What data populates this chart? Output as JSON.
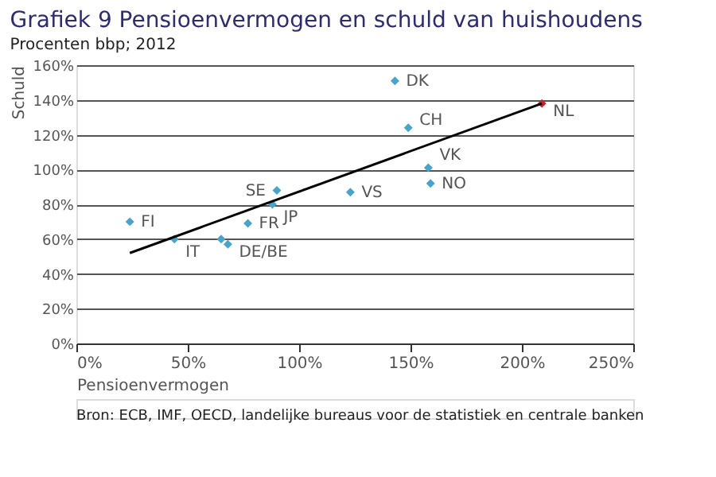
{
  "chart_data": {
    "type": "scatter",
    "title": "Grafiek 9 Pensioenvermogen en schuld van huishoudens",
    "subtitle": "Procenten bbp; 2012",
    "xlabel": "Pensioenvermogen",
    "ylabel": "Schuld",
    "xlim": [
      0,
      250
    ],
    "xticks": [
      {
        "value": 0,
        "label": "0%"
      },
      {
        "value": 50,
        "label": "50%"
      },
      {
        "value": 100,
        "label": "100%"
      },
      {
        "value": 150,
        "label": "150%"
      },
      {
        "value": 200,
        "label": "200%"
      },
      {
        "value": 250,
        "label": "250%"
      }
    ],
    "ylim": [
      0,
      160
    ],
    "yticks": [
      {
        "value": 0,
        "label": "0%"
      },
      {
        "value": 20,
        "label": "20%"
      },
      {
        "value": 40,
        "label": "40%"
      },
      {
        "value": 60,
        "label": "60%"
      },
      {
        "value": 80,
        "label": "80%"
      },
      {
        "value": 100,
        "label": "100%"
      },
      {
        "value": 120,
        "label": "120%"
      },
      {
        "value": 140,
        "label": "140%"
      },
      {
        "value": 160,
        "label": "160%"
      }
    ],
    "grid": "y",
    "marker": "diamond",
    "series": [
      {
        "color": "#4aa3c8",
        "x": [
          24,
          44,
          65,
          68,
          77,
          90,
          88,
          123,
          143,
          149,
          158,
          159
        ],
        "values": [
          70,
          60,
          60,
          57,
          69,
          88,
          80,
          87,
          151,
          124,
          101,
          92
        ],
        "value_labels": [
          "FI",
          "IT",
          null,
          "DE/BE",
          "FR",
          "SE",
          "JP",
          "VS",
          "DK",
          "CH",
          "VK",
          "NO"
        ]
      },
      {
        "color": "#c0282d",
        "x": [
          209
        ],
        "values": [
          138
        ],
        "value_labels": [
          "NL"
        ]
      },
      {
        "type": "line",
        "color": "#000000",
        "x": [
          24,
          209
        ],
        "values": [
          52,
          138
        ],
        "marker": "none"
      }
    ],
    "annotations": [
      "Bron: ECB, IMF, OECD, landelijke bureaus voor de statistiek en centrale banken"
    ]
  }
}
